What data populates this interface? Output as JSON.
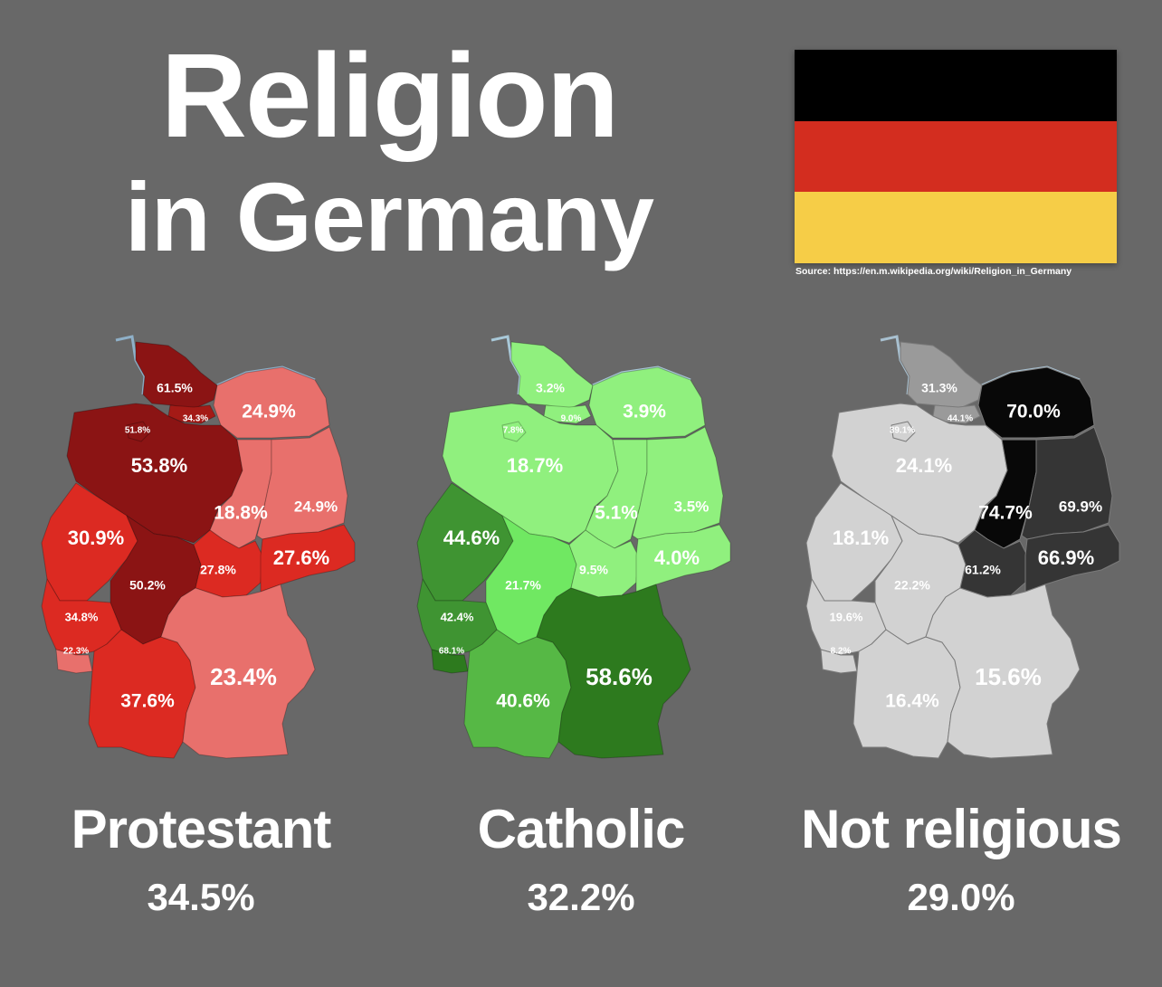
{
  "title": {
    "line1": "Religion",
    "line2": "in Germany"
  },
  "flag": {
    "colors": [
      "#000000",
      "#d32d1f",
      "#f6cd47"
    ]
  },
  "source": "Source: https://en.m.wikipedia.org/wiki/Religion_in_Germany",
  "panels": [
    {
      "label": "Protestant",
      "total": "34.5%",
      "colors": {
        "darkest": "#8b1414",
        "dark": "#a41a16",
        "mid": "#dc2a22",
        "light": "#e8706c",
        "coast": "#8fb0c8"
      },
      "values": {
        "sh": "61.5%",
        "hh": "34.3%",
        "hb": "51.8%",
        "ni": "53.8%",
        "mv": "24.9%",
        "st": "18.8%",
        "bb": "24.9%",
        "nw": "30.9%",
        "he": "50.2%",
        "th": "27.8%",
        "sn": "27.6%",
        "rp": "34.8%",
        "sl": "22.3%",
        "bw": "37.6%",
        "by": "23.4%"
      }
    },
    {
      "label": "Catholic",
      "total": "32.2%",
      "colors": {
        "darkest": "#2d7a1e",
        "dark": "#3f9432",
        "mid": "#56b845",
        "light": "#90f07e",
        "bright": "#70e862",
        "coast": "#a8c8d8"
      },
      "values": {
        "sh": "3.2%",
        "hh": "9.0%",
        "hb": "7.8%",
        "ni": "18.7%",
        "mv": "3.9%",
        "st": "5.1%",
        "bb": "3.5%",
        "nw": "44.6%",
        "he": "21.7%",
        "th": "9.5%",
        "sn": "4.0%",
        "rp": "42.4%",
        "sl": "68.1%",
        "bw": "40.6%",
        "by": "58.6%"
      }
    },
    {
      "label": "Not religious",
      "total": "29.0%",
      "colors": {
        "black": "#080808",
        "dark": "#353535",
        "mid": "#9a9a9a",
        "light": "#d2d2d2",
        "coast": "#a8c0d0"
      },
      "values": {
        "sh": "31.3%",
        "hh": "44.1%",
        "hb": "39.1%",
        "ni": "24.1%",
        "mv": "70.0%",
        "st": "74.7%",
        "bb": "69.9%",
        "nw": "18.1%",
        "he": "22.2%",
        "th": "61.2%",
        "sn": "66.9%",
        "rp": "19.6%",
        "sl": "8.2%",
        "bw": "16.4%",
        "by": "15.6%"
      }
    }
  ]
}
